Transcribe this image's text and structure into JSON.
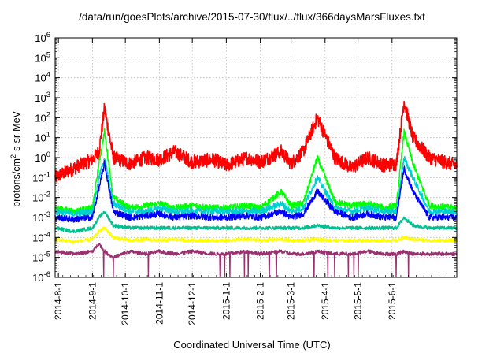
{
  "chart_data": {
    "type": "line",
    "title": "/data/run/goesPlots/archive/2015-07-30/flux/../flux/366daysMarsFluxes.txt",
    "xlabel": "Coordinated Universal Time (UTC)",
    "ylabel_main": "protons/cm",
    "ylabel_sup": "2",
    "ylabel_rest": "-s-sr-MeV",
    "yscale": "log",
    "ylim_exponents": [
      -6,
      6
    ],
    "ytick_base": "10",
    "ytick_exponents": [
      "6",
      "5",
      "4",
      "3",
      "2",
      "1",
      "0",
      "-1",
      "-2",
      "-3",
      "-4",
      "-5",
      "-6"
    ],
    "xlim": [
      "2014-07-29",
      "2015-07-30"
    ],
    "xtick_labels": [
      "2014-8-1",
      "2014-9-1",
      "2014-10-1",
      "2014-11-1",
      "2014-12-1",
      "2015-1-1",
      "2015-2-1",
      "2015-3-1",
      "2015-4-1",
      "2015-5-1",
      "2015-6-1"
    ],
    "xtick_dates": [
      "2014-08-01",
      "2014-09-01",
      "2014-10-01",
      "2014-11-01",
      "2014-12-01",
      "2015-01-01",
      "2015-02-01",
      "2015-03-01",
      "2015-04-01",
      "2015-05-01",
      "2015-06-01"
    ],
    "grid": true,
    "x": [
      "2014-07-29",
      "2014-08-15",
      "2014-09-01",
      "2014-09-07",
      "2014-09-12",
      "2014-09-20",
      "2014-10-05",
      "2014-10-20",
      "2014-11-01",
      "2014-11-15",
      "2014-12-01",
      "2014-12-20",
      "2015-01-01",
      "2015-01-20",
      "2015-02-01",
      "2015-02-20",
      "2015-03-01",
      "2015-03-12",
      "2015-03-25",
      "2015-04-10",
      "2015-04-25",
      "2015-05-10",
      "2015-05-25",
      "2015-06-05",
      "2015-06-12",
      "2015-06-20",
      "2015-07-05",
      "2015-07-30"
    ],
    "series": [
      {
        "color": "#ff0000",
        "values": [
          0.1,
          0.3,
          0.8,
          2,
          300,
          1,
          0.5,
          1,
          0.8,
          2,
          0.6,
          0.8,
          0.4,
          1,
          0.6,
          2,
          0.5,
          2,
          100,
          1,
          0.3,
          1,
          0.4,
          0.5,
          700,
          10,
          1,
          0.4
        ]
      },
      {
        "color": "#00ff00",
        "values": [
          0.003,
          0.002,
          0.003,
          0.5,
          20,
          0.01,
          0.003,
          0.004,
          0.005,
          0.003,
          0.004,
          0.003,
          0.003,
          0.004,
          0.003,
          0.02,
          0.004,
          0.005,
          1,
          0.006,
          0.004,
          0.005,
          0.003,
          0.004,
          20,
          0.5,
          0.004,
          0.003
        ]
      },
      {
        "color": "#00cfcf",
        "values": [
          0.002,
          0.0015,
          0.002,
          0.1,
          1,
          0.005,
          0.002,
          0.002,
          0.003,
          0.002,
          0.002,
          0.002,
          0.002,
          0.002,
          0.002,
          0.005,
          0.002,
          0.003,
          0.1,
          0.003,
          0.002,
          0.003,
          0.002,
          0.002,
          1,
          0.1,
          0.002,
          0.002
        ]
      },
      {
        "color": "#0000ff",
        "values": [
          0.001,
          0.0008,
          0.001,
          0.03,
          0.5,
          0.002,
          0.001,
          0.0012,
          0.0015,
          0.001,
          0.0012,
          0.001,
          0.001,
          0.0012,
          0.001,
          0.002,
          0.001,
          0.0015,
          0.02,
          0.002,
          0.001,
          0.0015,
          0.001,
          0.001,
          0.3,
          0.02,
          0.001,
          0.001
        ]
      },
      {
        "color": "#00c090",
        "values": [
          0.0003,
          0.0002,
          0.0003,
          0.001,
          0.002,
          0.0004,
          0.0003,
          0.0003,
          0.0003,
          0.0003,
          0.0003,
          0.0003,
          0.0003,
          0.0003,
          0.0003,
          0.0003,
          0.0003,
          0.0003,
          0.0004,
          0.0003,
          0.0003,
          0.0003,
          0.0003,
          0.0003,
          0.001,
          0.0004,
          0.0003,
          0.0003
        ]
      },
      {
        "color": "#ffff00",
        "values": [
          8e-05,
          6e-05,
          8e-05,
          0.0002,
          0.0003,
          0.0001,
          7e-05,
          8e-05,
          7e-05,
          8e-05,
          7e-05,
          7e-05,
          7e-05,
          8e-05,
          7e-05,
          8e-05,
          7e-05,
          7e-05,
          8e-05,
          7e-05,
          7e-05,
          7e-05,
          7e-05,
          7e-05,
          0.0001,
          8e-05,
          7e-05,
          7e-05
        ]
      },
      {
        "color": "#9a3070",
        "values": [
          2e-05,
          1.5e-05,
          2e-05,
          5e-05,
          2e-05,
          1e-05,
          2e-05,
          1.5e-05,
          2e-05,
          1.5e-05,
          2e-05,
          1.5e-05,
          1.5e-05,
          2e-05,
          1.5e-05,
          2e-05,
          1.5e-05,
          1.5e-05,
          2e-05,
          1.5e-05,
          1.5e-05,
          2e-05,
          1.5e-05,
          1.5e-05,
          2e-05,
          1.5e-05,
          1.5e-05,
          1.5e-05
        ]
      }
    ]
  }
}
